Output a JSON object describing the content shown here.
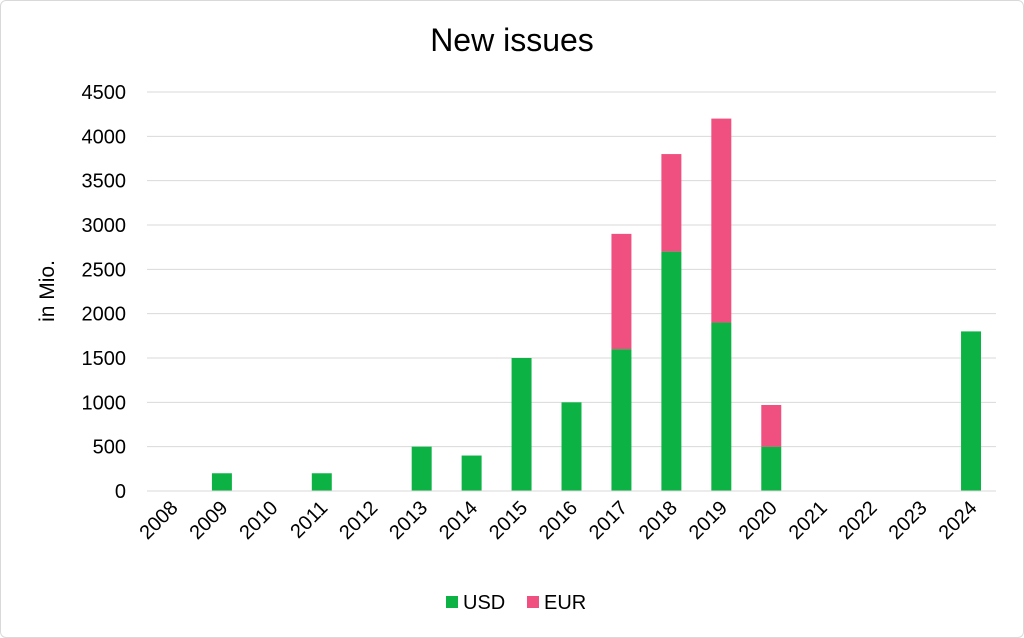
{
  "chart_data": {
    "type": "bar",
    "stacked": true,
    "title": "New issues",
    "xlabel": "",
    "ylabel": "in Mio.",
    "ylim": [
      0,
      4500
    ],
    "yticks": [
      0,
      500,
      1000,
      1500,
      2000,
      2500,
      3000,
      3500,
      4000,
      4500
    ],
    "grid": true,
    "legend": "bottom",
    "categories": [
      "2008",
      "2009",
      "2010",
      "2011",
      "2012",
      "2013",
      "2014",
      "2015",
      "2016",
      "2017",
      "2018",
      "2019",
      "2020",
      "2021",
      "2022",
      "2023",
      "2024"
    ],
    "series": [
      {
        "name": "USD",
        "color": "#0cb344",
        "values": [
          0,
          200,
          0,
          200,
          0,
          500,
          400,
          1500,
          1000,
          1600,
          2700,
          1900,
          500,
          0,
          0,
          0,
          1800
        ]
      },
      {
        "name": "EUR",
        "color": "#ef5080",
        "values": [
          0,
          0,
          0,
          0,
          0,
          0,
          0,
          0,
          0,
          1300,
          1100,
          2300,
          470,
          0,
          0,
          0,
          0
        ]
      }
    ]
  }
}
